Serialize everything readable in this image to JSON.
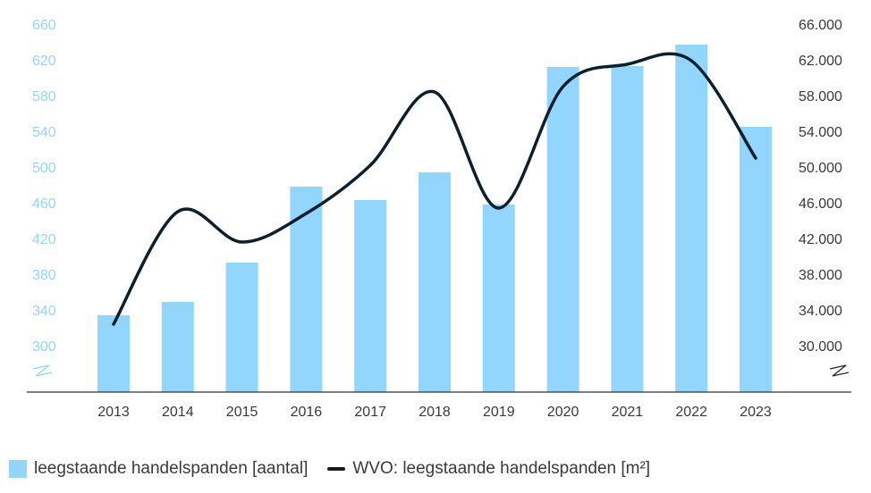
{
  "chart_data": {
    "type": "bar",
    "categories": [
      "2013",
      "2014",
      "2015",
      "2016",
      "2017",
      "2018",
      "2019",
      "2020",
      "2021",
      "2022",
      "2023"
    ],
    "series": [
      {
        "name": "leegstaande handelspanden [aantal]",
        "type": "bar",
        "axis": "left",
        "color": "#92d5fd",
        "values": [
          334,
          349,
          393,
          478,
          463,
          494,
          458,
          612,
          613,
          637,
          545
        ]
      },
      {
        "name": "WVO: leegstaande handelspanden [m²]",
        "type": "line",
        "axis": "right",
        "color": "#0d1f2d",
        "values": [
          32400,
          45000,
          41600,
          44800,
          50200,
          58400,
          45400,
          59000,
          61500,
          61900,
          51000
        ]
      }
    ],
    "y_left": {
      "ticks": [
        "660",
        "620",
        "580",
        "540",
        "500",
        "460",
        "420",
        "380",
        "340",
        "300"
      ],
      "tick_values": [
        660,
        620,
        580,
        540,
        500,
        460,
        420,
        380,
        340,
        300
      ],
      "color": "#92d5fd",
      "broken_axis": true
    },
    "y_right": {
      "ticks": [
        "66.000",
        "62.000",
        "58.000",
        "54.000",
        "50.000",
        "46.000",
        "42.000",
        "38.000",
        "34.000",
        "30.000"
      ],
      "tick_values": [
        66000,
        62000,
        58000,
        54000,
        50000,
        46000,
        42000,
        38000,
        34000,
        30000
      ],
      "color": "#3a3a3a",
      "broken_axis": true
    },
    "grid": false,
    "legend_position": "bottom-left"
  },
  "legend": {
    "bar_label": "leegstaande handelspanden [aantal]",
    "line_label": "WVO: leegstaande handelspanden [m²]"
  }
}
